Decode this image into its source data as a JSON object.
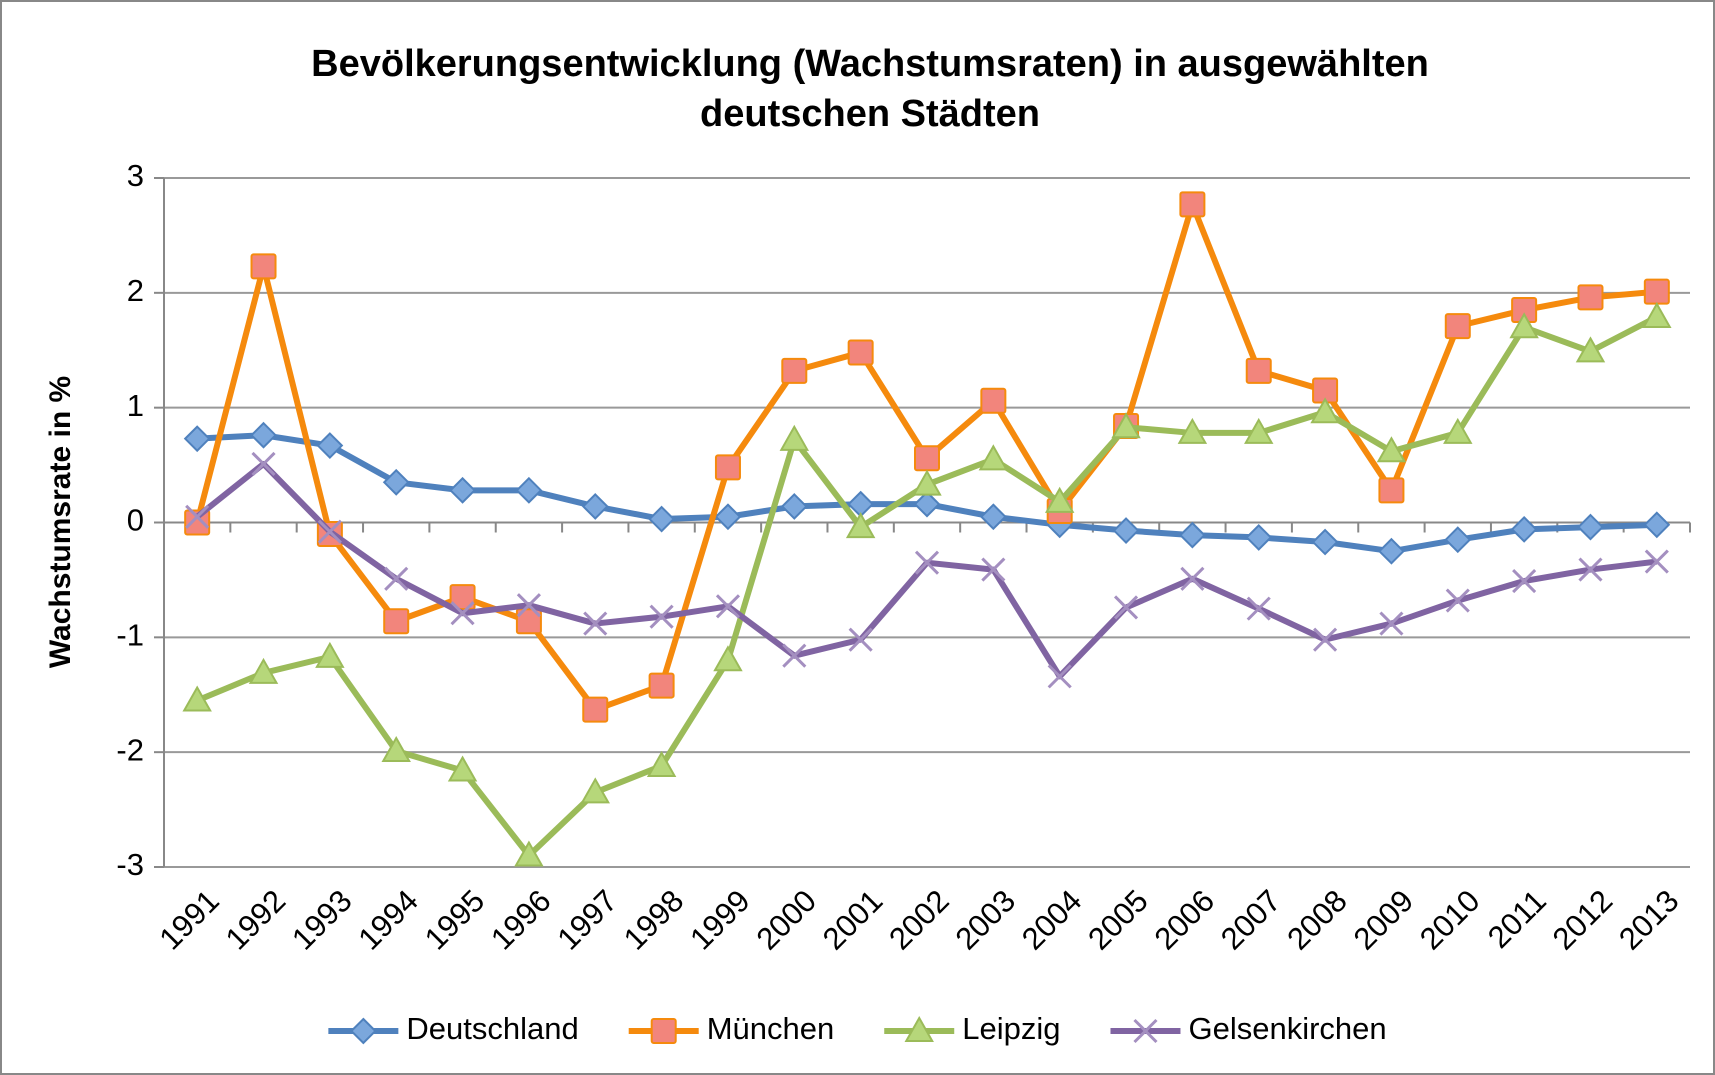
{
  "chart_data": {
    "type": "line",
    "title": "Bevölkerungsentwicklung (Wachstumsraten) in ausgewählten deutschen Städten",
    "ylabel": "Wachstumsrate in %",
    "categories": [
      "1991",
      "1992",
      "1993",
      "1994",
      "1995",
      "1996",
      "1997",
      "1998",
      "1999",
      "2000",
      "2001",
      "2002",
      "2003",
      "2004",
      "2005",
      "2006",
      "2007",
      "2008",
      "2009",
      "2010",
      "2011",
      "2012",
      "2013"
    ],
    "series": [
      {
        "name": "Deutschland",
        "color": "#4f81bd",
        "marker": "diamond",
        "marker_color": "#7ba7dc",
        "values": [
          0.73,
          0.76,
          0.67,
          0.35,
          0.28,
          0.28,
          0.14,
          0.03,
          0.05,
          0.14,
          0.16,
          0.16,
          0.05,
          -0.02,
          -0.07,
          -0.11,
          -0.13,
          -0.17,
          -0.25,
          -0.15,
          -0.06,
          -0.04,
          -0.02
        ]
      },
      {
        "name": "München",
        "color": "#f58a0d",
        "marker": "square",
        "marker_color": "#f2857c",
        "values": [
          0.0,
          2.23,
          -0.1,
          -0.86,
          -0.65,
          -0.86,
          -1.63,
          -1.42,
          0.48,
          1.32,
          1.48,
          0.56,
          1.06,
          0.1,
          0.84,
          2.77,
          1.32,
          1.15,
          0.28,
          1.71,
          1.85,
          1.96,
          2.01
        ]
      },
      {
        "name": "Leipzig",
        "color": "#9bbb59",
        "marker": "triangle",
        "marker_color": "#b6d77a",
        "values": [
          -1.55,
          -1.31,
          -1.17,
          -1.99,
          -2.16,
          -2.9,
          -2.35,
          -2.12,
          -1.2,
          0.72,
          -0.04,
          0.33,
          0.55,
          0.18,
          0.83,
          0.78,
          0.78,
          0.96,
          0.62,
          0.78,
          1.7,
          1.49,
          1.79
        ]
      },
      {
        "name": "Gelsenkirchen",
        "color": "#8064a2",
        "marker": "x",
        "marker_color": "#a48fc0",
        "values": [
          0.05,
          0.51,
          -0.08,
          -0.49,
          -0.79,
          -0.72,
          -0.88,
          -0.82,
          -0.73,
          -1.16,
          -1.02,
          -0.35,
          -0.41,
          -1.34,
          -0.74,
          -0.49,
          -0.75,
          -1.02,
          -0.88,
          -0.68,
          -0.51,
          -0.41,
          -0.34
        ]
      }
    ],
    "ylim": [
      -3,
      3
    ],
    "yticks": [
      -3,
      -2,
      -1,
      0,
      1,
      2,
      3
    ],
    "grid": true,
    "legend": "bottom"
  }
}
